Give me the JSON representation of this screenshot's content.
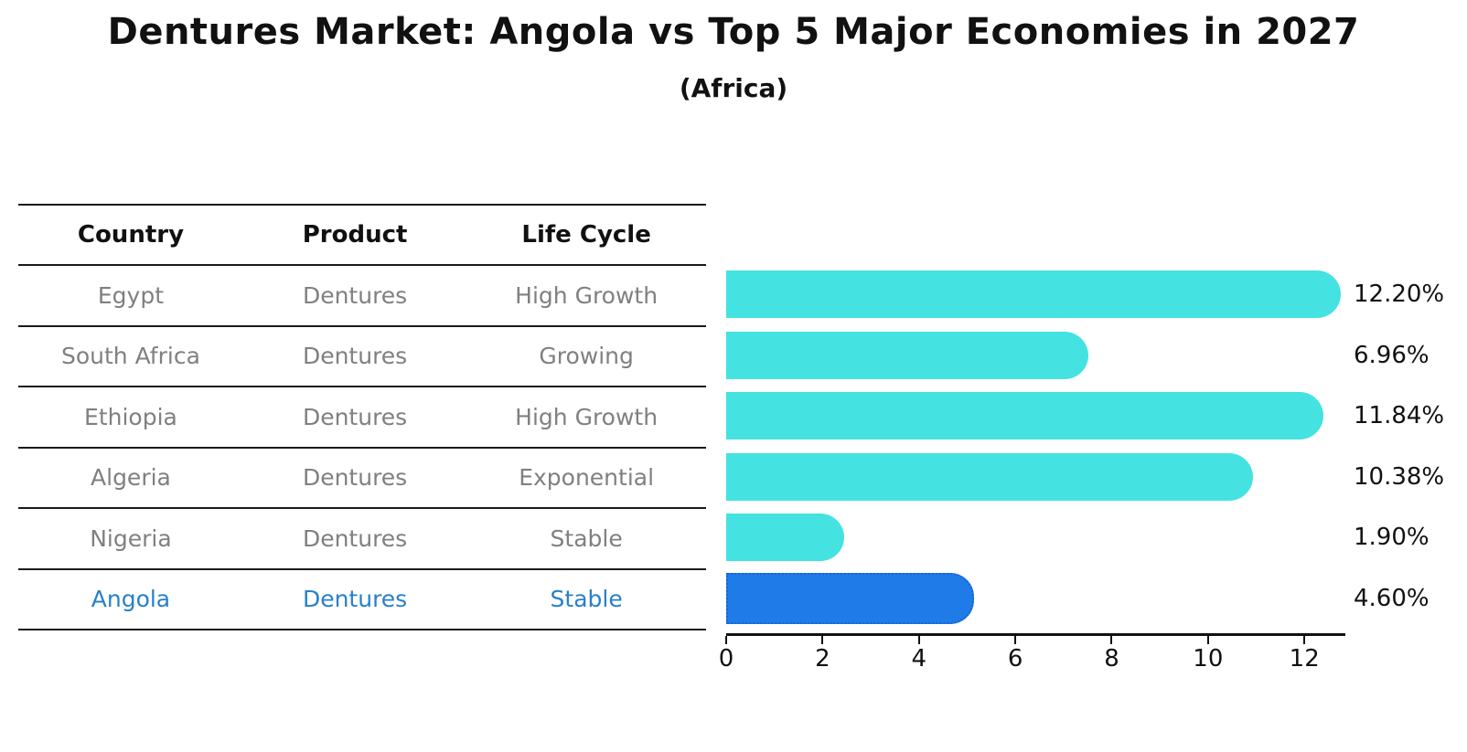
{
  "title": "Dentures Market: Angola vs Top 5 Major Economies in 2027",
  "subtitle": "(Africa)",
  "table": {
    "headers": [
      "Country",
      "Product",
      "Life Cycle"
    ],
    "rows": [
      {
        "country": "Egypt",
        "product": "Dentures",
        "life_cycle": "High Growth",
        "highlight": false
      },
      {
        "country": "South Africa",
        "product": "Dentures",
        "life_cycle": "Growing",
        "highlight": false
      },
      {
        "country": "Ethiopia",
        "product": "Dentures",
        "life_cycle": "High Growth",
        "highlight": false
      },
      {
        "country": "Algeria",
        "product": "Dentures",
        "life_cycle": "Exponential",
        "highlight": false
      },
      {
        "country": "Nigeria",
        "product": "Dentures",
        "life_cycle": "Stable",
        "highlight": false
      },
      {
        "country": "Angola",
        "product": "Dentures",
        "life_cycle": "Stable",
        "highlight": true
      }
    ]
  },
  "chart_data": {
    "type": "bar",
    "orientation": "horizontal",
    "categories": [
      "Egypt",
      "South Africa",
      "Ethiopia",
      "Algeria",
      "Nigeria",
      "Angola"
    ],
    "values": [
      12.2,
      6.96,
      11.84,
      10.38,
      1.9,
      4.6
    ],
    "value_labels": [
      "12.20%",
      "6.96%",
      "11.84%",
      "10.38%",
      "1.90%",
      "4.60%"
    ],
    "highlight_index": 5,
    "xticks": [
      0,
      2,
      4,
      6,
      8,
      10,
      12
    ],
    "xlim": [
      0,
      12.85
    ],
    "grid": false,
    "legend": false,
    "bar_color": "#45E2E2",
    "highlight_bar_color": "#1F7BE8",
    "highlight_text_color": "#2980C9",
    "title": "Dentures Market: Angola vs Top 5 Major Economies in 2027",
    "subtitle": "(Africa)",
    "xlabel": "",
    "ylabel": ""
  }
}
